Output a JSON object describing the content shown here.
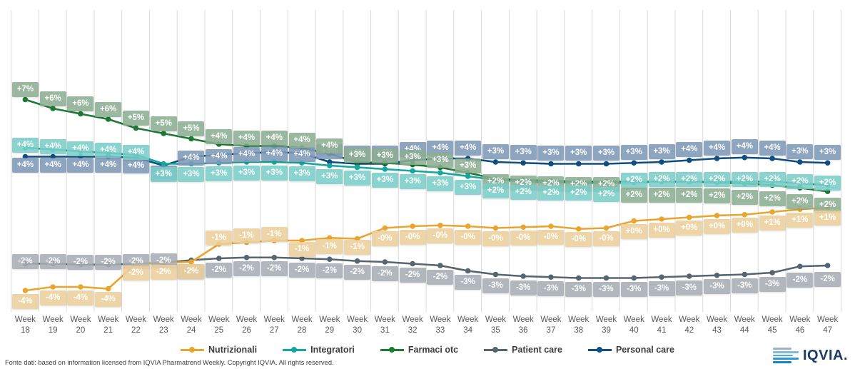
{
  "chart_data": {
    "type": "line",
    "title": "",
    "grid": "vertical-only",
    "legend_position": "bottom",
    "x_axis": {
      "label_prefix": "Week",
      "weeks": [
        18,
        19,
        20,
        21,
        22,
        23,
        24,
        25,
        26,
        27,
        28,
        29,
        30,
        31,
        32,
        33,
        34,
        35,
        36,
        37,
        38,
        39,
        40,
        41,
        42,
        43,
        44,
        45,
        46,
        47
      ]
    },
    "series": [
      {
        "name": "Nutrizionali",
        "line_color": "#E9A52F",
        "box_color": "#ECCF9B",
        "labels": [
          "-4%",
          "-4%",
          "-4%",
          "-4%",
          "-2%",
          "-2%",
          "-2%",
          "-1%",
          "-1%",
          "-1%",
          "-1%",
          "-1%",
          "-1%",
          "-0%",
          "-0%",
          "-0%",
          "-0%",
          "-0%",
          "-0%",
          "-0%",
          "-0%",
          "-0%",
          "+0%",
          "+0%",
          "+0%",
          "+0%",
          "+0%",
          "+1%",
          "+1%",
          "+1%"
        ],
        "values": [
          -3.8,
          -3.6,
          -3.6,
          -3.7,
          -2.3,
          -2.25,
          -2.2,
          -1.2,
          -1.1,
          -1.0,
          -1.0,
          -0.85,
          -0.9,
          -0.3,
          -0.2,
          -0.15,
          -0.2,
          -0.3,
          -0.25,
          -0.2,
          -0.35,
          -0.3,
          0.1,
          0.2,
          0.3,
          0.4,
          0.45,
          0.6,
          0.75,
          0.85
        ]
      },
      {
        "name": "Integratori",
        "line_color": "#13A79E",
        "box_color": "#7ACDC7",
        "labels": [
          "+4%",
          "+4%",
          "+4%",
          "+4%",
          "+4%",
          "+3%",
          "+3%",
          "+3%",
          "+3%",
          "+3%",
          "+3%",
          "+3%",
          "+3%",
          "+3%",
          "+3%",
          "+3%",
          "+3%",
          "+2%",
          "+2%",
          "+2%",
          "+2%",
          "+2%",
          "+2%",
          "+2%",
          "+2%",
          "+2%",
          "+2%",
          "+2%",
          "+2%",
          "+2%"
        ],
        "values": [
          4.2,
          4.1,
          4.0,
          3.9,
          3.8,
          3.3,
          3.3,
          3.35,
          3.4,
          3.4,
          3.35,
          3.2,
          3.1,
          3.0,
          2.9,
          2.8,
          2.6,
          2.4,
          2.3,
          2.25,
          2.25,
          2.2,
          2.25,
          2.3,
          2.3,
          2.3,
          2.3,
          2.3,
          2.2,
          2.1
        ]
      },
      {
        "name": "Farmaci otc",
        "line_color": "#1D7A33",
        "box_color": "#8CAD92",
        "labels": [
          "+7%",
          "+6%",
          "+6%",
          "+6%",
          "+5%",
          "+5%",
          "+5%",
          "+4%",
          "+4%",
          "+4%",
          "+4%",
          "+4%",
          "+3%",
          "+3%",
          "+3%",
          "+3%",
          "+3%",
          "+2%",
          "+2%",
          "+2%",
          "+2%",
          "+2%",
          "+2%",
          "+2%",
          "+2%",
          "+2%",
          "+2%",
          "+2%",
          "+2%",
          "+2%"
        ],
        "values": [
          6.9,
          6.4,
          6.1,
          5.8,
          5.3,
          5.0,
          4.7,
          4.4,
          4.3,
          4.3,
          4.2,
          3.85,
          3.4,
          3.35,
          3.25,
          3.1,
          2.8,
          2.45,
          2.4,
          2.35,
          2.3,
          2.3,
          2.3,
          2.3,
          2.3,
          2.25,
          2.2,
          2.1,
          1.95,
          1.75
        ]
      },
      {
        "name": "Patient care",
        "line_color": "#566570",
        "box_color": "#A6ADB3",
        "labels": [
          "-2%",
          "-2%",
          "-2%",
          "-2%",
          "-2%",
          "-2%",
          "-2%",
          "-2%",
          "-2%",
          "-2%",
          "-2%",
          "-2%",
          "-2%",
          "-2%",
          "-2%",
          "-2%",
          "-3%",
          "-3%",
          "-3%",
          "-3%",
          "-3%",
          "-3%",
          "-3%",
          "-3%",
          "-3%",
          "-3%",
          "-3%",
          "-3%",
          "-2%",
          "-2%"
        ],
        "values": [
          -2.3,
          -2.3,
          -2.35,
          -2.35,
          -2.3,
          -2.25,
          -2.1,
          -2.0,
          -1.95,
          -1.95,
          -2.0,
          -2.05,
          -2.15,
          -2.2,
          -2.3,
          -2.4,
          -2.7,
          -2.9,
          -3.0,
          -3.05,
          -3.1,
          -3.1,
          -3.1,
          -3.05,
          -3.0,
          -2.95,
          -2.9,
          -2.8,
          -2.45,
          -2.4
        ]
      },
      {
        "name": "Personal care",
        "line_color": "#0F4E80",
        "box_color": "#7E99B7",
        "labels": [
          "+4%",
          "+4%",
          "+4%",
          "+4%",
          "+4%",
          "+3%",
          "+4%",
          "+4%",
          "+4%",
          "+4%",
          "+4%",
          "+3%",
          "+3%",
          "+3%",
          "+4%",
          "+4%",
          "+4%",
          "+3%",
          "+3%",
          "+3%",
          "+3%",
          "+3%",
          "+3%",
          "+3%",
          "+4%",
          "+4%",
          "+4%",
          "+4%",
          "+3%",
          "+3%"
        ],
        "values": [
          3.7,
          3.7,
          3.7,
          3.7,
          3.65,
          3.2,
          3.7,
          3.8,
          3.9,
          3.95,
          3.9,
          3.4,
          3.3,
          3.3,
          3.5,
          3.6,
          3.6,
          3.4,
          3.35,
          3.3,
          3.3,
          3.3,
          3.35,
          3.4,
          3.5,
          3.6,
          3.65,
          3.6,
          3.4,
          3.35
        ]
      }
    ],
    "legend": [
      "Nutrizionali",
      "Integratori",
      "Farmaci otc",
      "Patient care",
      "Personal care"
    ]
  },
  "footer": {
    "source_text": "Fonte dati: based on information licensed from IQVIA Pharmatrend Weekly. Copyright IQVIA. All rights reserved."
  },
  "brand": {
    "logo_text": "IQVIA."
  }
}
